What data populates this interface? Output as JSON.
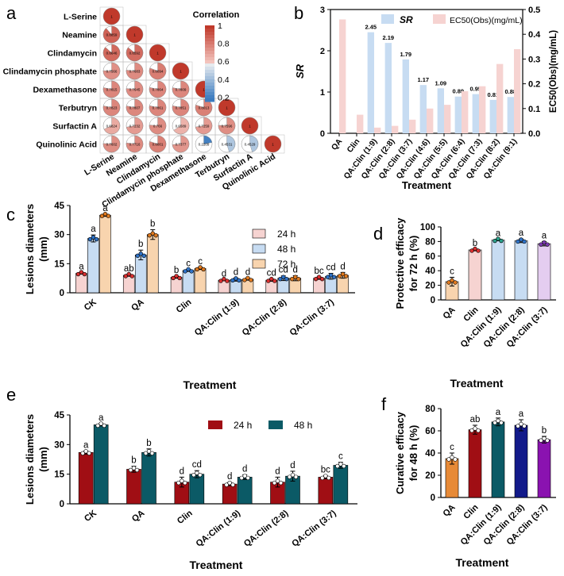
{
  "colors": {
    "red": "#c0392b",
    "blue": "#3a7bbf",
    "pale_red": "#f6d3d1",
    "pale_blue": "#c7dcf2",
    "pale_orange": "#f8d4ae",
    "orange": "#e78a37",
    "dark_red": "#a00e14",
    "teal": "#0b5a66",
    "dot_red": "#d93030",
    "dot_blue": "#2f73c8",
    "dot_orange": "#e07a20",
    "green_teal": "#2aa08a",
    "purple": "#7b3ab0",
    "navy": "#121a8a",
    "bright_purple": "#8a12b0"
  },
  "chart_data": [
    {
      "panel": "a",
      "type": "heatmap",
      "variables": [
        "L-Serine",
        "Neamine",
        "Clindamycin",
        "Clindamycin phosphate",
        "Dexamethasone",
        "Terbutryn",
        "Surfactin A",
        "Quinolinic Acid"
      ],
      "legend_title": "Correlation",
      "legend_ticks": [
        "1",
        "0.8",
        "0.6",
        "0.4",
        "0.2"
      ],
      "lower_triangle": [
        [
          "1"
        ],
        [
          "0.8859",
          "1"
        ],
        [
          "0.8646",
          "0.8592",
          "1"
        ],
        [
          "0.7566",
          "0.7683",
          "0.8094",
          "1"
        ],
        [
          "0.7815",
          "0.7645",
          "0.7864",
          "0.7809",
          "1"
        ],
        [
          "0.7823",
          "0.7807",
          "0.7861",
          "0.7851",
          "0.8013",
          "1"
        ],
        [
          "0.6824",
          "0.7232",
          "0.766",
          "0.6589",
          "0.7259",
          "0.7596",
          "1"
        ],
        [
          "0.7602",
          "0.7716",
          "0.8001",
          "0.7377",
          "0.2209",
          "0.4531",
          "0.4529",
          "1"
        ]
      ],
      "lower_triangle_values": [
        [
          1
        ],
        [
          0.886,
          1
        ],
        [
          0.865,
          0.859,
          1
        ],
        [
          0.757,
          0.768,
          0.809,
          1
        ],
        [
          0.782,
          0.765,
          0.786,
          0.781,
          1
        ],
        [
          0.782,
          0.781,
          0.786,
          0.785,
          0.801,
          1
        ],
        [
          0.682,
          0.723,
          0.766,
          0.659,
          0.726,
          0.76,
          1
        ],
        [
          0.76,
          0.772,
          0.8,
          0.738,
          0.221,
          0.453,
          0.453,
          1
        ]
      ]
    },
    {
      "panel": "b",
      "type": "bar",
      "xlabel": "Treatment",
      "ylabel_left": "SR",
      "ylabel_right": "EC50(Obs)(mg/mL)",
      "ylim_left": [
        0,
        3
      ],
      "yticks_left": [
        "0",
        "1",
        "2",
        "3"
      ],
      "ylim_right": [
        0,
        0.5
      ],
      "yticks_right": [
        "0.0",
        "0.1",
        "0.2",
        "0.3",
        "0.4",
        "0.5"
      ],
      "categories": [
        "QA",
        "Clin",
        "QA:Clin (1:9)",
        "QA:Clin (2:8)",
        "QA:Clin (3:7)",
        "QA:Clin (4:6)",
        "QA:Clin (5:5)",
        "QA:Clin (6:4)",
        "QA:Clin (7:3)",
        "QA:Clin (8:2)",
        "QA:Clin (9:1)"
      ],
      "legend": [
        "SR",
        "EC50(Obs)(mg/mL)"
      ],
      "series": [
        {
          "name": "SR",
          "values": [
            null,
            null,
            2.45,
            2.19,
            1.79,
            1.17,
            1.09,
            0.89,
            0.95,
            0.81,
            0.88
          ],
          "labels": [
            "",
            "",
            "2.45",
            "2.19",
            "1.79",
            "1.17",
            "1.09",
            "0.89",
            "0.95",
            "0.81",
            "0.88"
          ]
        },
        {
          "name": "EC50(Obs)(mg/mL)",
          "values": [
            0.46,
            0.075,
            0.023,
            0.03,
            0.055,
            0.1,
            0.115,
            0.17,
            0.19,
            0.28,
            0.34
          ]
        }
      ]
    },
    {
      "panel": "c",
      "type": "bar",
      "xlabel": "Treatment",
      "ylabel": "Lesions diameters (mm)",
      "ylim": [
        0,
        45
      ],
      "yticks": [
        "0",
        "15",
        "30",
        "45"
      ],
      "categories": [
        "CK",
        "QA",
        "Clin",
        "QA:Clin (1:9)",
        "QA:Clin (2:8)",
        "QA:Clin (3:7)"
      ],
      "legend": [
        "24 h",
        "48 h",
        "72 h"
      ],
      "series": [
        {
          "name": "24 h",
          "values": [
            10,
            9,
            8,
            6.5,
            6.5,
            7.5
          ],
          "errors": [
            0.4,
            0.5,
            0.5,
            0.3,
            0.6,
            0.6
          ],
          "letters": [
            "a",
            "ab",
            "b",
            "d",
            "cd",
            "bc"
          ]
        },
        {
          "name": "48 h",
          "values": [
            28,
            19.5,
            11.5,
            6.8,
            7.5,
            8.5
          ],
          "errors": [
            1.8,
            2.5,
            0.5,
            0.8,
            1.2,
            1.5
          ],
          "letters": [
            "a",
            "b",
            "c",
            "d",
            "cd",
            "cd"
          ]
        },
        {
          "name": "72 h",
          "values": [
            40,
            30,
            12.5,
            7,
            7.5,
            9
          ],
          "errors": [
            0.6,
            2.5,
            0.5,
            0.5,
            1.3,
            1.5
          ],
          "letters": [
            "a",
            "b",
            "c",
            "d",
            "d",
            "d"
          ]
        }
      ]
    },
    {
      "panel": "d",
      "type": "bar",
      "xlabel": "Treatment",
      "ylabel": "Protective efficacy for 72 h (%)",
      "ylim": [
        0,
        100
      ],
      "yticks": [
        "0",
        "20",
        "40",
        "60",
        "80",
        "100"
      ],
      "categories": [
        "QA",
        "Clin",
        "QA:Clin (1:9)",
        "QA:Clin (2:8)",
        "QA:Clin (3:7)"
      ],
      "values": [
        25,
        68.5,
        82,
        81,
        77
      ],
      "errors": [
        6,
        1.2,
        1,
        2.5,
        3
      ],
      "letters": [
        "c",
        "b",
        "a",
        "a",
        "a"
      ]
    },
    {
      "panel": "e",
      "type": "bar",
      "xlabel": "Treatment",
      "ylabel": "Lesions diameters (mm)",
      "ylim": [
        0,
        45
      ],
      "yticks": [
        "0",
        "15",
        "30",
        "45"
      ],
      "categories": [
        "CK",
        "QA",
        "Clin",
        "QA:Clin (1:9)",
        "QA:Clin (2:8)",
        "QA:Clin (3:7)"
      ],
      "legend": [
        "24 h",
        "48 h"
      ],
      "series": [
        {
          "name": "24 h",
          "values": [
            26,
            17.5,
            11,
            10,
            11,
            13.5
          ],
          "errors": [
            0.8,
            1.5,
            2.5,
            0.8,
            2.5,
            0.8
          ],
          "letters": [
            "a",
            "b",
            "d",
            "d",
            "d",
            "bc"
          ]
        },
        {
          "name": "48 h",
          "values": [
            40,
            26,
            15,
            13.5,
            14,
            19.5
          ],
          "errors": [
            0.5,
            1.8,
            1.8,
            1.2,
            2.5,
            1.5
          ],
          "letters": [
            "a",
            "b",
            "cd",
            "d",
            "d",
            "c"
          ]
        }
      ]
    },
    {
      "panel": "f",
      "type": "bar",
      "xlabel": "Treatment",
      "ylabel": "Curative efficacy for 48 h (%)",
      "ylim": [
        0,
        80
      ],
      "yticks": [
        "0",
        "20",
        "40",
        "60",
        "80"
      ],
      "categories": [
        "QA",
        "Clin",
        "QA:Clin (1:9)",
        "QA:Clin (2:8)",
        "QA:Clin (3:7)"
      ],
      "values": [
        35,
        61,
        68,
        65,
        52
      ],
      "errors": [
        5,
        4,
        3.5,
        5,
        3
      ],
      "letters": [
        "c",
        "ab",
        "a",
        "a",
        "b"
      ]
    }
  ]
}
